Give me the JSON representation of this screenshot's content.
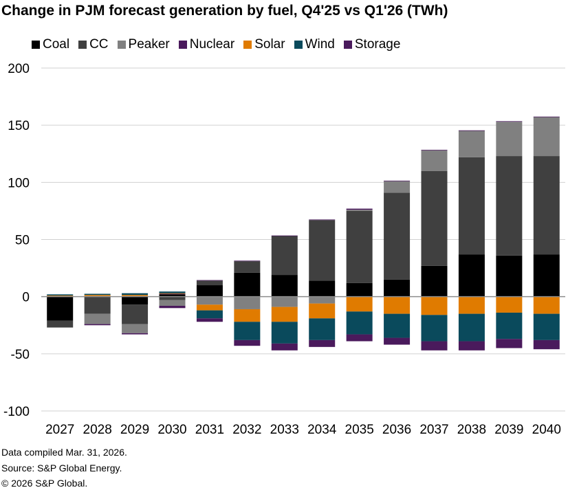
{
  "chart_data": {
    "type": "bar",
    "stacked": true,
    "title": "Change in PJM forecast generation by fuel, Q4'25 vs Q1'26 (TWh)",
    "xlabel": "",
    "ylabel": "",
    "ylim": [
      -100,
      200
    ],
    "yticks": [
      200,
      150,
      100,
      50,
      0,
      -50,
      -100
    ],
    "grid": true,
    "legend_position": "top",
    "categories": [
      "2027",
      "2028",
      "2029",
      "2030",
      "2031",
      "2032",
      "2033",
      "2034",
      "2035",
      "2036",
      "2037",
      "2038",
      "2039",
      "2040"
    ],
    "series": [
      {
        "name": "Coal",
        "color": "#000000",
        "values": [
          -21,
          0,
          -7,
          2,
          10,
          21,
          19,
          14,
          12,
          15,
          27,
          37,
          36,
          37
        ]
      },
      {
        "name": "CC",
        "color": "#404040",
        "values": [
          -6,
          -15,
          -17,
          -3,
          4,
          10,
          34,
          53,
          63,
          76,
          83,
          85,
          87,
          86
        ]
      },
      {
        "name": "Peaker",
        "color": "#808080",
        "values": [
          0,
          -9,
          -8,
          -5,
          -7,
          -11,
          -9,
          -6,
          1,
          10,
          18,
          23,
          30,
          34
        ]
      },
      {
        "name": "Nuclear",
        "color": "#4a1a5c",
        "values": [
          0.5,
          0.5,
          0.5,
          0.5,
          0.5,
          0.5,
          0.5,
          0.5,
          1,
          0.5,
          0.5,
          0.5,
          0.5,
          0.5
        ]
      },
      {
        "name": "Solar",
        "color": "#e07b00",
        "values": [
          0.5,
          1,
          1,
          0.5,
          -5,
          -11,
          -13,
          -13,
          -13,
          -15,
          -16,
          -15,
          -14,
          -15
        ]
      },
      {
        "name": "Wind",
        "color": "#0a4a5c",
        "values": [
          1,
          1,
          1.5,
          1.5,
          -7,
          -16,
          -19,
          -19,
          -20,
          -21,
          -23,
          -24,
          -23,
          -23
        ]
      },
      {
        "name": "Storage",
        "color": "#4a1a5c",
        "values": [
          0,
          -1,
          -1,
          -2,
          -3,
          -5,
          -6,
          -6,
          -6,
          -6,
          -8,
          -8,
          -8,
          -8
        ]
      }
    ]
  },
  "footer": {
    "line1": "Data compiled Mar. 31, 2026.",
    "line2": "Source: S&P Global Energy.",
    "line3": "© 2026 S&P Global."
  }
}
